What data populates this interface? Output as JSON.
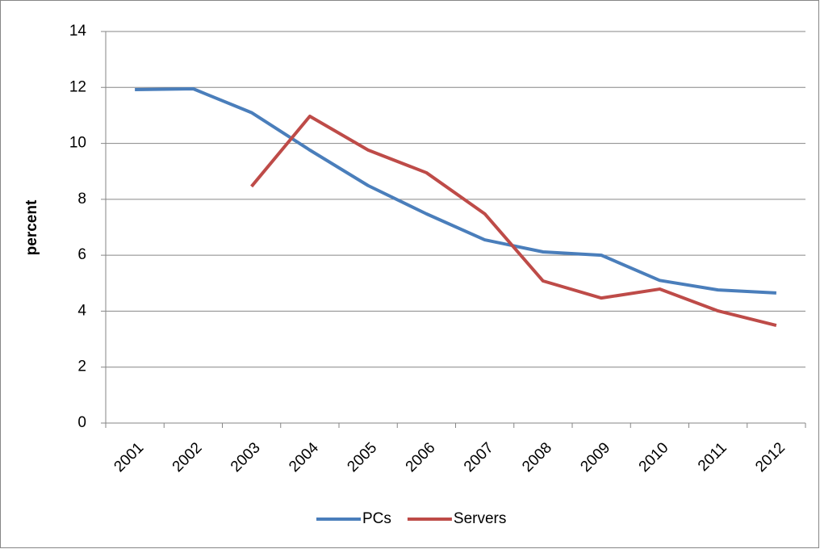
{
  "chart_data": {
    "type": "line",
    "y_label": "percent",
    "categories": [
      "2001",
      "2002",
      "2003",
      "2004",
      "2005",
      "2006",
      "2007",
      "2008",
      "2009",
      "2010",
      "2011",
      "2012"
    ],
    "series": [
      {
        "name": "PCs",
        "color": "#4a7ebb",
        "values": [
          11.92,
          11.95,
          11.1,
          9.76,
          8.49,
          7.48,
          6.55,
          6.12,
          6.0,
          5.1,
          4.76,
          4.65
        ]
      },
      {
        "name": "Servers",
        "color": "#be4b48",
        "values": [
          null,
          null,
          8.46,
          10.97,
          9.76,
          8.95,
          7.48,
          5.08,
          4.47,
          4.79,
          4.01,
          3.49
        ]
      }
    ],
    "ylim": [
      0,
      14
    ],
    "yticks": [
      0,
      2,
      4,
      6,
      8,
      10,
      12,
      14
    ],
    "grid": true,
    "legend": "bottom"
  }
}
